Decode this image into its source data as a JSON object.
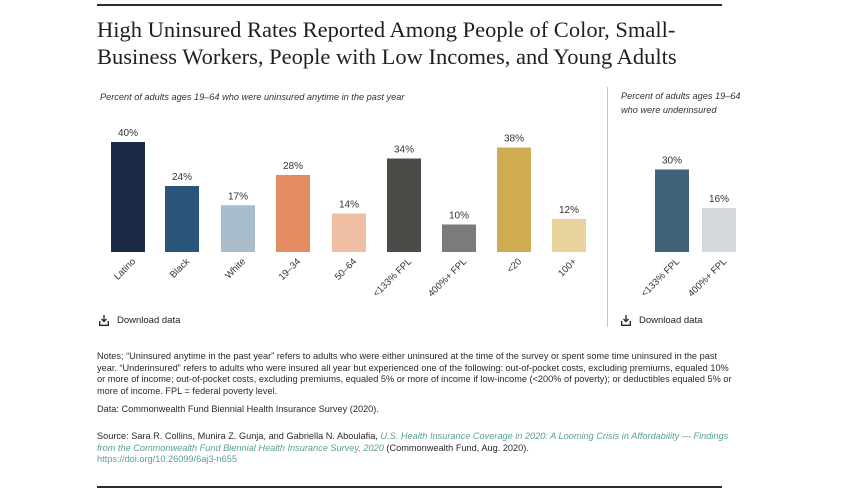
{
  "title": "High Uninsured Rates Reported Among People of Color, Small-Business Workers, People with Low Incomes, and Young Adults",
  "chart_data": [
    {
      "type": "bar",
      "title": "Percent of adults ages 19–64 who were uninsured anytime in the past year",
      "categories": [
        "Latino",
        "Black",
        "White",
        "19–34",
        "50–64",
        "<133% FPL",
        "400%+ FPL",
        "<20",
        "100+"
      ],
      "values": [
        40,
        24,
        17,
        28,
        14,
        34,
        10,
        38,
        12
      ],
      "data_labels": [
        "40%",
        "24%",
        "17%",
        "28%",
        "14%",
        "34%",
        "10%",
        "38%",
        "12%"
      ],
      "colors": [
        "#1b2a45",
        "#2a5479",
        "#a9bccb",
        "#e38c62",
        "#efbda3",
        "#4a4d47",
        "#7b7b7b",
        "#cfab52",
        "#e8d39d"
      ],
      "ylim": [
        0,
        45
      ],
      "grid": false
    },
    {
      "type": "bar",
      "title": "Percent of adults ages 19–64 who were underinsured",
      "categories": [
        "<133% FPL",
        "400%+ FPL"
      ],
      "values": [
        30,
        16
      ],
      "data_labels": [
        "30%",
        "16%"
      ],
      "colors": [
        "#3f6278",
        "#d4d7dc"
      ],
      "ylim": [
        0,
        45
      ],
      "grid": false
    }
  ],
  "download": {
    "label": "Download data",
    "icon": "download-icon"
  },
  "notes": "Notes; “Uninsured anytime in the past year” refers to adults who were either uninsured at the time of the survey or spent some time uninsured in the past year. “Underinsured” refers to adults who were insured all year but experienced one of the following: out-of-pocket costs, excluding premiums, equaled 10% or more of income; out-of-pocket costs, excluding premiums, equaled 5% or more of income if low-income (<200% of poverty); or deductibles equaled 5% or more of income. FPL = federal poverty level.",
  "data_source": "Data: Commonwealth Fund Biennial Health Insurance Survey (2020).",
  "source": {
    "prefix": "Source: Sara R. Collins, Munira Z. Gunja, and Gabriella N. Aboulafia, ",
    "link_title": "U.S. Health Insurance Coverage in 2020: A Looming Crisis in Affordability — Findings from the Commonwealth Fund Biennial Health Insurance Survey, 2020",
    "suffix": " (Commonwealth Fund, Aug. 2020).",
    "doi": "https://doi.org/10.26099/6aj3-n655"
  }
}
